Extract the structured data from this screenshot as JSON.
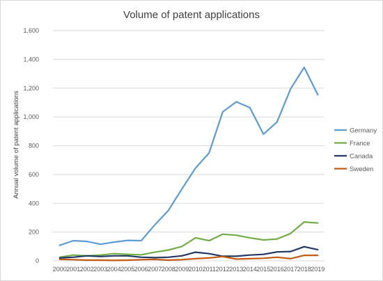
{
  "chart_data": {
    "type": "line",
    "title": "Volume of patent applications",
    "xlabel": "",
    "ylabel": "Annual volume of patent applications",
    "ylim": [
      0,
      1600
    ],
    "yticks": [
      "0",
      "200",
      "400",
      "600",
      "800",
      "1,000",
      "1,200",
      "1,400",
      "1,600"
    ],
    "ytick_values": [
      0,
      200,
      400,
      600,
      800,
      1000,
      1200,
      1400,
      1600
    ],
    "grid": "horizontal",
    "legend_position": "right",
    "categories": [
      "2000",
      "2001",
      "2002",
      "2003",
      "2004",
      "2005",
      "2006",
      "2007",
      "2008",
      "2009",
      "2010",
      "2011",
      "2012",
      "2013",
      "2014",
      "2015",
      "2016",
      "2017",
      "2018",
      "2019"
    ],
    "series": [
      {
        "name": "Germany",
        "color": "#5b9bd5",
        "values": [
          108,
          140,
          135,
          115,
          130,
          142,
          140,
          250,
          350,
          500,
          645,
          750,
          1035,
          1105,
          1065,
          880,
          965,
          1195,
          1345,
          1155
        ]
      },
      {
        "name": "France",
        "color": "#70ad47",
        "values": [
          25,
          40,
          35,
          40,
          50,
          45,
          42,
          60,
          75,
          100,
          160,
          140,
          185,
          178,
          160,
          145,
          152,
          190,
          270,
          263
        ]
      },
      {
        "name": "Canada",
        "color": "#203864",
        "values": [
          20,
          25,
          35,
          30,
          35,
          35,
          25,
          22,
          25,
          35,
          60,
          50,
          32,
          32,
          40,
          45,
          62,
          65,
          98,
          78
        ]
      },
      {
        "name": "Sweden",
        "color": "#c55a11",
        "values": [
          10,
          8,
          5,
          5,
          3,
          5,
          8,
          10,
          5,
          8,
          15,
          20,
          30,
          12,
          15,
          18,
          25,
          15,
          38,
          38
        ]
      }
    ]
  }
}
